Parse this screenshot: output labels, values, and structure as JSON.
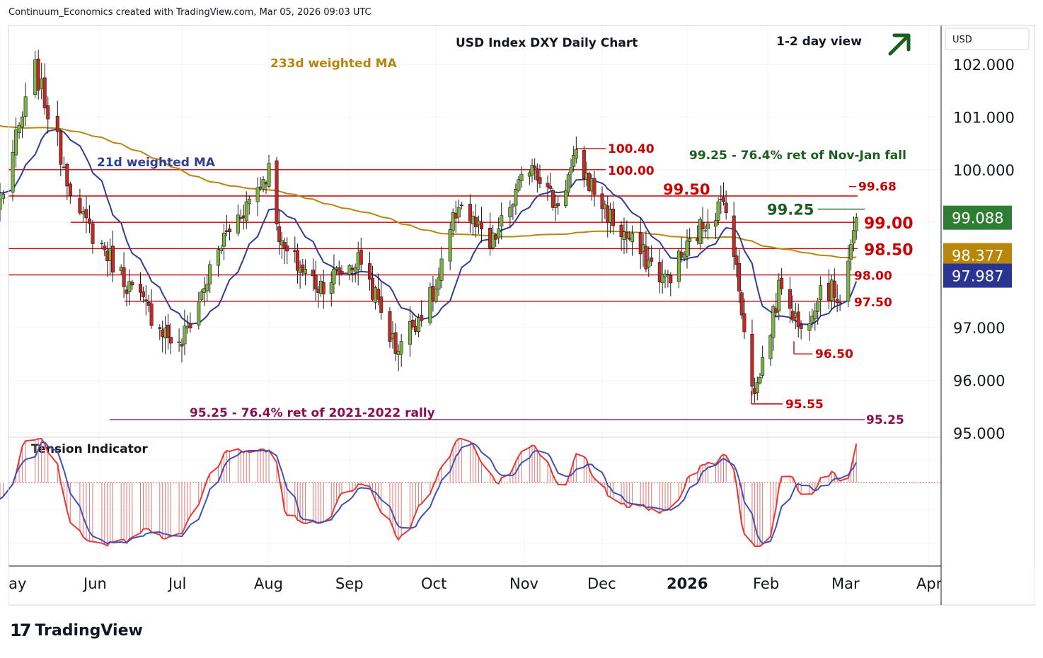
{
  "header": {
    "credit": "Continuum_Economics created with TradingView.com, Mar 05, 2026 09:03 UTC"
  },
  "footer": {
    "brand": "TradingView",
    "brand_mark": "17"
  },
  "chart_data": {
    "type": "candlestick",
    "title": "USD Index DXY Daily Chart",
    "view_label": "1-2 day view",
    "view_arrow": "up-right-arrow",
    "currency": "USD",
    "ylim": [
      95.0,
      102.5
    ],
    "y_ticks": [
      "102.000",
      "101.000",
      "100.000",
      "97.000",
      "96.000",
      "95.000"
    ],
    "x_ticks": [
      "May",
      "Jun",
      "Jul",
      "Aug",
      "Sep",
      "Oct",
      "Nov",
      "Dec",
      "2026",
      "Feb",
      "Mar",
      "Apr"
    ],
    "horizontal_levels": [
      {
        "value": 100.0,
        "label": "100.00",
        "color": "#cc0000",
        "bold": false
      },
      {
        "value": 99.5,
        "label": "99.50",
        "color": "#cc0000",
        "bold": true
      },
      {
        "value": 99.0,
        "label": "99.00",
        "color": "#cc0000",
        "bold": true
      },
      {
        "value": 98.5,
        "label": "98.50",
        "color": "#cc0000",
        "bold": true
      },
      {
        "value": 98.0,
        "label": "98.00",
        "color": "#cc0000",
        "bold": false
      },
      {
        "value": 97.5,
        "label": "97.50",
        "color": "#cc0000",
        "bold": false
      },
      {
        "value": 95.25,
        "label": "95.25",
        "color": "#880e4f",
        "bold": false
      }
    ],
    "point_labels": [
      {
        "label": "100.40",
        "value": 100.4,
        "color": "#cc0000"
      },
      {
        "label": "99.68",
        "value": 99.68,
        "color": "#cc0000"
      },
      {
        "label": "99.25",
        "value": 99.25,
        "color": "#1b5e20"
      },
      {
        "label": "96.50",
        "value": 96.5,
        "color": "#cc0000"
      },
      {
        "label": "95.55",
        "value": 95.55,
        "color": "#cc0000"
      }
    ],
    "annotations": {
      "ma233": "233d weighted MA",
      "ma21": "21d weighted MA",
      "fib_nov_jan": "99.25 - 76.4% ret of Nov-Jan fall",
      "fib_2021_2022": "95.25 - 76.4% ret of 2021-2022 rally"
    },
    "price_badges": [
      {
        "label": "99.088",
        "value": 99.088,
        "color": "#2e7d32"
      },
      {
        "label": "98.377",
        "value": 98.377,
        "color": "#b8860b"
      },
      {
        "label": "97.987",
        "value": 97.987,
        "color": "#283593"
      }
    ],
    "series": [
      {
        "name": "DXY",
        "key_points": [
          [
            "2025-05-01",
            99.4
          ],
          [
            "2025-05-12",
            101.9
          ],
          [
            "2025-05-26",
            99.1
          ],
          [
            "2025-06-13",
            97.7
          ],
          [
            "2025-06-30",
            96.6
          ],
          [
            "2025-07-16",
            98.7
          ],
          [
            "2025-08-01",
            100.0
          ],
          [
            "2025-08-06",
            98.5
          ],
          [
            "2025-08-20",
            97.8
          ],
          [
            "2025-09-05",
            98.3
          ],
          [
            "2025-09-17",
            96.6
          ],
          [
            "2025-10-01",
            97.7
          ],
          [
            "2025-10-09",
            99.4
          ],
          [
            "2025-10-20",
            98.5
          ],
          [
            "2025-11-04",
            100.2
          ],
          [
            "2025-11-13",
            99.3
          ],
          [
            "2025-11-21",
            100.2
          ],
          [
            "2025-12-05",
            99.0
          ],
          [
            "2025-12-24",
            97.9
          ],
          [
            "2026-01-09",
            99.1
          ],
          [
            "2026-01-16",
            99.4
          ],
          [
            "2026-01-27",
            95.7
          ],
          [
            "2026-02-06",
            97.9
          ],
          [
            "2026-02-13",
            96.9
          ],
          [
            "2026-02-20",
            97.8
          ],
          [
            "2026-02-27",
            97.6
          ],
          [
            "2026-03-05",
            99.088
          ]
        ]
      },
      {
        "name": "233d weighted MA",
        "color": "#b8860b"
      },
      {
        "name": "21d weighted MA",
        "color": "#2e3f94"
      }
    ],
    "indicator": {
      "title": "Tension Indicator"
    }
  }
}
